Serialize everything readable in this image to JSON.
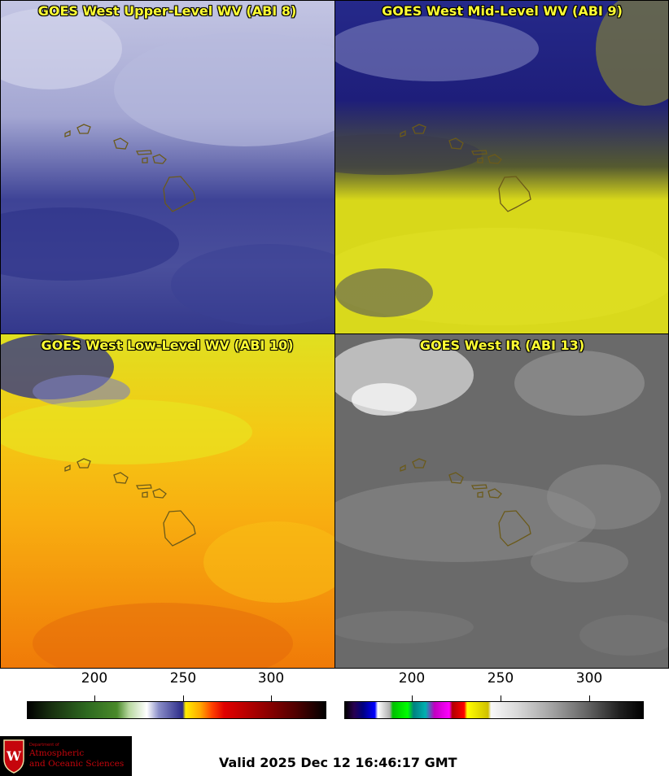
{
  "panels": [
    {
      "title": "GOES West Upper-Level WV (ABI 8)"
    },
    {
      "title": "GOES West Mid-Level WV (ABI 9)"
    },
    {
      "title": "GOES West Low-Level WV (ABI 10)"
    },
    {
      "title": "GOES West IR (ABI 13)"
    }
  ],
  "colorbar_wv": {
    "ticks": [
      "200",
      "250",
      "300"
    ]
  },
  "colorbar_ir": {
    "ticks": [
      "200",
      "250",
      "300"
    ]
  },
  "logo": {
    "department_of": "Department of",
    "line1": "Atmospheric",
    "line2": "and Oceanic Sciences",
    "crest_letter": "W"
  },
  "valid_time": "Valid 2025 Dec 12 16:46:17 GMT"
}
